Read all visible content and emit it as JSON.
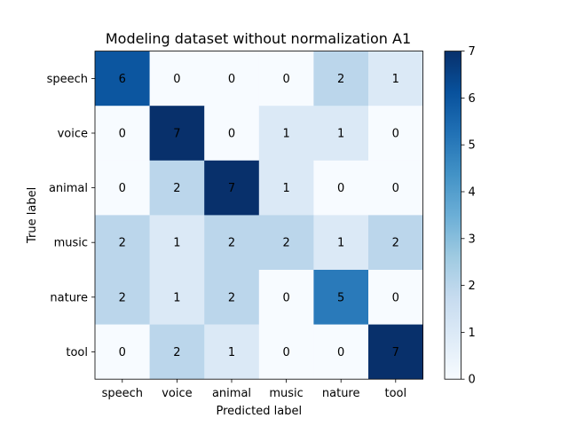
{
  "chart_data": {
    "type": "heatmap",
    "title": "Modeling dataset without normalization A1",
    "xlabel": "Predicted label",
    "ylabel": "True label",
    "x_categories": [
      "speech",
      "voice",
      "animal",
      "music",
      "nature",
      "tool"
    ],
    "y_categories": [
      "speech",
      "voice",
      "animal",
      "music",
      "nature",
      "tool"
    ],
    "values": [
      [
        6,
        0,
        0,
        0,
        2,
        1
      ],
      [
        0,
        7,
        0,
        1,
        1,
        0
      ],
      [
        0,
        2,
        7,
        1,
        0,
        0
      ],
      [
        2,
        1,
        2,
        2,
        1,
        2
      ],
      [
        2,
        1,
        2,
        0,
        5,
        0
      ],
      [
        0,
        2,
        1,
        0,
        0,
        7
      ]
    ],
    "vmin": 0,
    "vmax": 7,
    "colormap": "Blues",
    "colorbar_ticks": [
      0,
      1,
      2,
      3,
      4,
      5,
      6,
      7
    ],
    "grid": false
  }
}
